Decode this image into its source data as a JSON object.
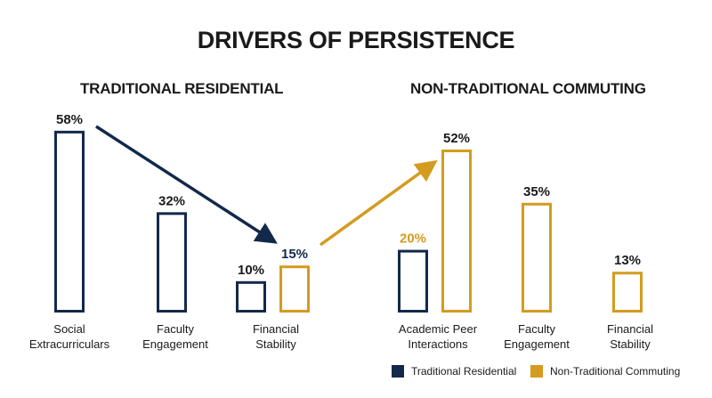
{
  "chart_data": {
    "type": "bar",
    "title": "DRIVERS OF PERSISTENCE",
    "value_suffix": "%",
    "ylim": [
      0,
      60
    ],
    "groups": [
      {
        "name": "TRADITIONAL RESIDENTIAL",
        "bars": [
          {
            "category": [
              "Social",
              "Extracurriculars"
            ],
            "series": "Traditional Residential",
            "value": 58
          },
          {
            "category": [
              "Faculty",
              "Engagement"
            ],
            "series": "Traditional Residential",
            "value": 32
          },
          {
            "category": [
              "Financial",
              "Stability"
            ],
            "series": "Traditional Residential",
            "value": 10
          },
          {
            "category": [
              "Financial",
              "Stability"
            ],
            "series": "Non-Traditional Commuting",
            "value": 15
          }
        ]
      },
      {
        "name": "NON-TRADITIONAL COMMUTING",
        "bars": [
          {
            "category": [
              "Academic Peer",
              "Interactions"
            ],
            "series": "Traditional Residential",
            "value": 20
          },
          {
            "category": [
              "Academic Peer",
              "Interactions"
            ],
            "series": "Non-Traditional Commuting",
            "value": 52
          },
          {
            "category": [
              "Faculty",
              "Engagement"
            ],
            "series": "Non-Traditional Commuting",
            "value": 35
          },
          {
            "category": [
              "Financial",
              "Stability"
            ],
            "series": "Non-Traditional Commuting",
            "value": 13
          }
        ]
      }
    ],
    "legend": [
      {
        "name": "Traditional Residential",
        "color": "#13294b"
      },
      {
        "name": "Non-Traditional Commuting",
        "color": "#d49b1e"
      }
    ],
    "legend_position": "bottom-right"
  }
}
